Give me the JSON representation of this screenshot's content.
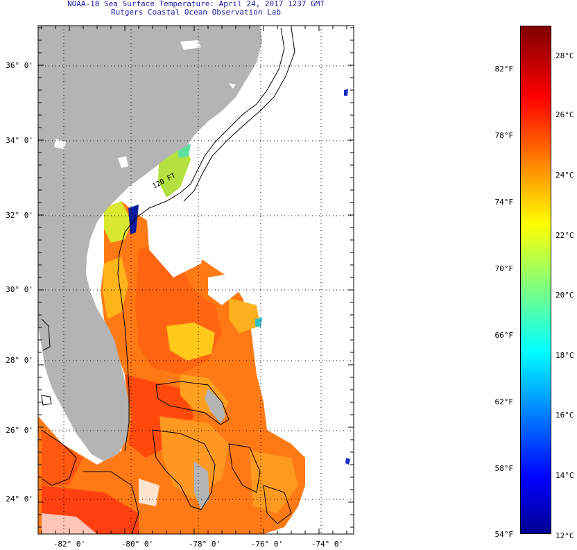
{
  "title": {
    "line1": "NOAA-18 Sea Surface Temperature:  April 24, 2017 1237 GMT",
    "line2": "Rutgers Coastal Ocean Observation Lab"
  },
  "map": {
    "lat_labels": [
      "36° 0'",
      "34° 0'",
      "32° 0'",
      "30° 0'",
      "28° 0'",
      "26° 0'",
      "24° 0'"
    ],
    "lon_labels": [
      "-82° 0'",
      "-80° 0'",
      "-78° 0'",
      "-76° 0'",
      "-74° 0'"
    ],
    "contour_label": "120 FT",
    "land_color": "#b4b4b4",
    "cloud_color": "#ffffff"
  },
  "colorbar": {
    "fahrenheit_labels": [
      "82°F",
      "78°F",
      "74°F",
      "70°F",
      "66°F",
      "62°F",
      "58°F",
      "54°F"
    ],
    "celsius_labels": [
      "28°C",
      "26°C",
      "24°C",
      "22°C",
      "20°C",
      "18°C",
      "16°C",
      "14°C",
      "12°C"
    ],
    "min_c": 12,
    "max_c": 29.5,
    "colormap": "jet"
  }
}
